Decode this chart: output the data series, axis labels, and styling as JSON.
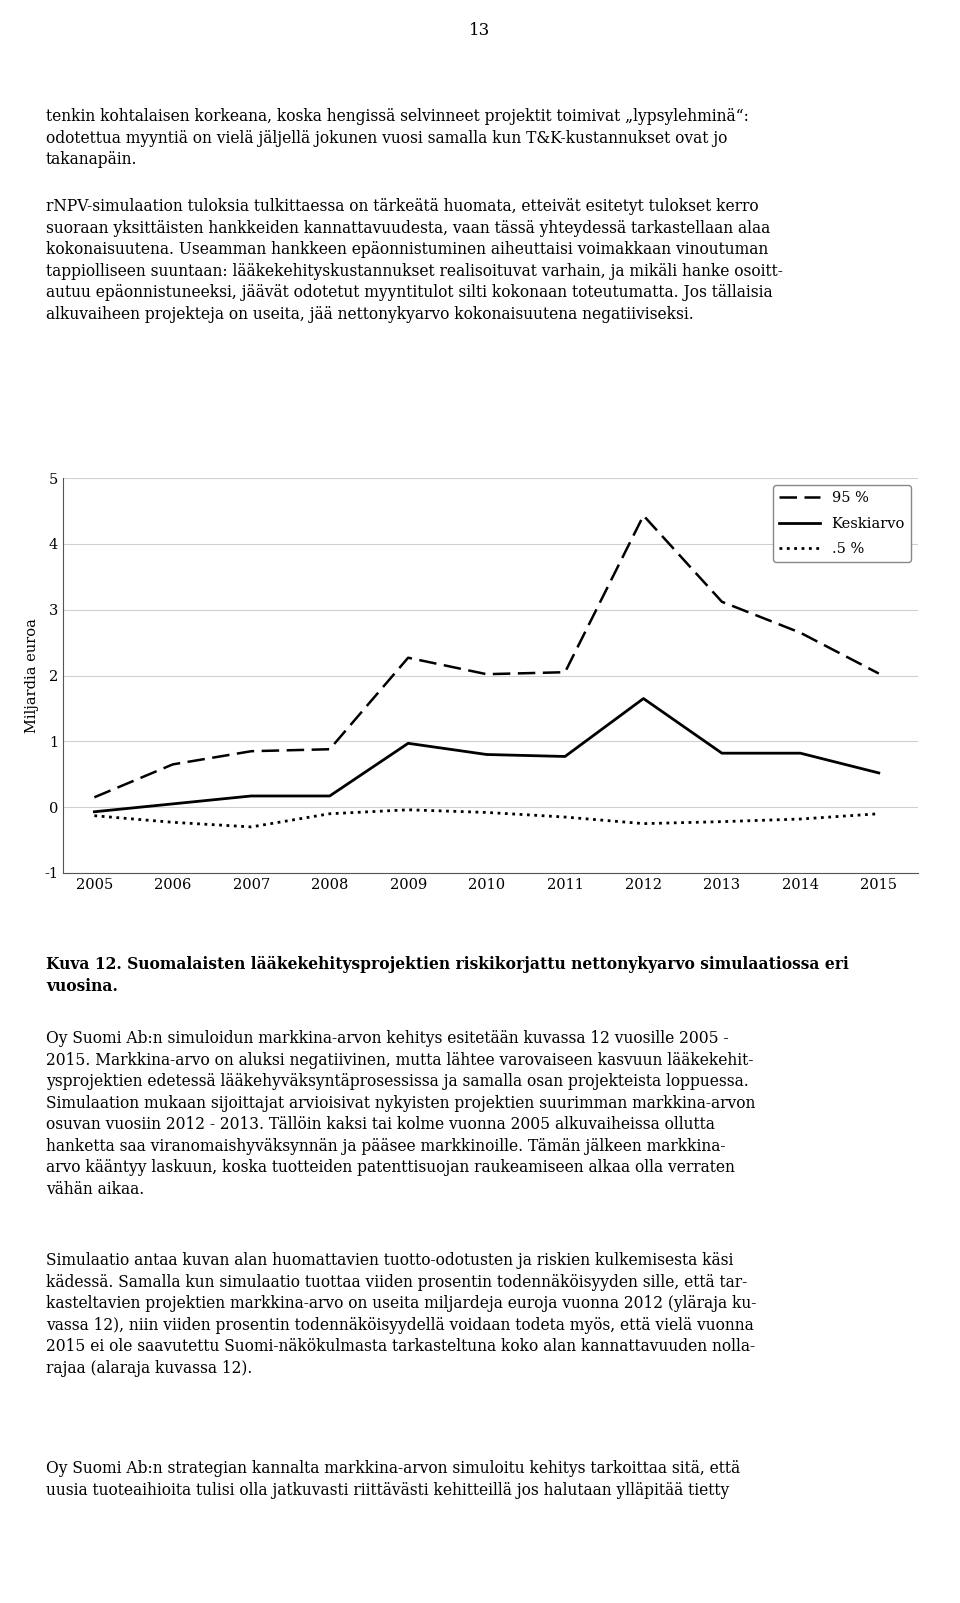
{
  "page_number": "13",
  "top_text_line1": "tenkin kohtalaisen korkeana, koska hengissä selvinneet projektit toimivat „lypsylehminä“:",
  "top_text_line2": "odotettua myyntiä on vielä jäljellä jokunen vuosi samalla kun T&K-kustannukset ovat jo",
  "top_text_line3": "takanapäin.",
  "para2_line1": "rNPV-simulaation tuloksia tulkittaessa on tärkeätä huomata, etteivät esitetyt tulokset kerro",
  "para2_line2": "suoraan yksittäisten hankkeiden kannattavuudesta, vaan tässä yhteydessä tarkastellaan alaa",
  "para2_line3": "kokonaisuutena. Useamman hankkeen epäonnistuminen aiheuttaisi voimakkaan vinoutuman",
  "para2_line4": "tappiolliseen suuntaan: lääkekehityskustannukset realisoituvat varhain, ja mikäli hanke osoitt-",
  "para2_line5": "autuu epäonnistuneeksi, jäävät odotetut myyntitulot silti kokonaan toteutumatta. Jos tällaisia",
  "para2_line6": "alkuvaiheen projekteja on useita, jää nettonykyarvo kokonaisuutena negatiiviseksi.",
  "caption_bold": "Kuva 12. Suomalaisten lääkekehitysprojektien riskikorjattu nettonykyarvo simulaatiossa eri",
  "caption_bold2": "vuosina.",
  "body1_lines": [
    "Oy Suomi Ab:n simuloidun markkina-arvon kehitys esitetään kuvassa 12 vuosille 2005 -",
    "2015. Markkina-arvo on aluksi negatiivinen, mutta lähtee varovaiseen kasvuun lääkekehit-",
    "ysprojektien edetessä lääkehyväksyntäprosessissa ja samalla osan projekteista loppuessa.",
    "Simulaation mukaan sijoittajat arvioisivat nykyisten projektien suurimman markkina-arvon",
    "osuvan vuosiin 2012 - 2013. Tällöin kaksi tai kolme vuonna 2005 alkuvaiheissa ollutta",
    "hanketta saa viranomaishyväksynnän ja pääsee markkinoille. Tämän jälkeen markkina-",
    "arvo kääntyy laskuun, koska tuotteiden patenttisuojan raukeamiseen alkaa olla verraten",
    "vähän aikaa."
  ],
  "body2_lines": [
    "Simulaatio antaa kuvan alan huomattavien tuotto-odotusten ja riskien kulkemisesta käsi",
    "kädessä. Samalla kun simulaatio tuottaa viiden prosentin todennäköisyyden sille, että tar-",
    "kasteltavien projektien markkina-arvo on useita miljardeja euroja vuonna 2012 (yläraja ku-",
    "vassa 12), niin viiden prosentin todennäköisyydellä voidaan todeta myös, että vielä vuonna",
    "2015 ei ole saavutettu Suomi-näkökulmasta tarkasteltuna koko alan kannattavuuden nolla-",
    "rajaa (alaraja kuvassa 12)."
  ],
  "body3_lines": [
    "Oy Suomi Ab:n strategian kannalta markkina-arvon simuloitu kehitys tarkoittaa sitä, että",
    "uusia tuoteaihioita tulisi olla jatkuvasti riittävästi kehitteillä jos halutaan ylläpitää tietty"
  ],
  "years": [
    2005,
    2006,
    2007,
    2008,
    2009,
    2010,
    2011,
    2012,
    2013,
    2014,
    2015
  ],
  "p95": [
    0.15,
    0.65,
    0.85,
    0.88,
    2.27,
    2.02,
    2.05,
    4.43,
    3.12,
    2.65,
    2.03
  ],
  "keskiarvo": [
    -0.07,
    0.05,
    0.17,
    0.17,
    0.97,
    0.8,
    0.77,
    1.65,
    0.82,
    0.82,
    0.52
  ],
  "p5": [
    -0.13,
    -0.23,
    -0.3,
    -0.1,
    -0.04,
    -0.08,
    -0.15,
    -0.25,
    -0.22,
    -0.18,
    -0.1
  ],
  "ylabel": "Miljardia euroa",
  "legend_95": "95 %",
  "legend_mean": "Keskiarvo",
  "legend_5": ".5 %",
  "background_color": "#ffffff"
}
